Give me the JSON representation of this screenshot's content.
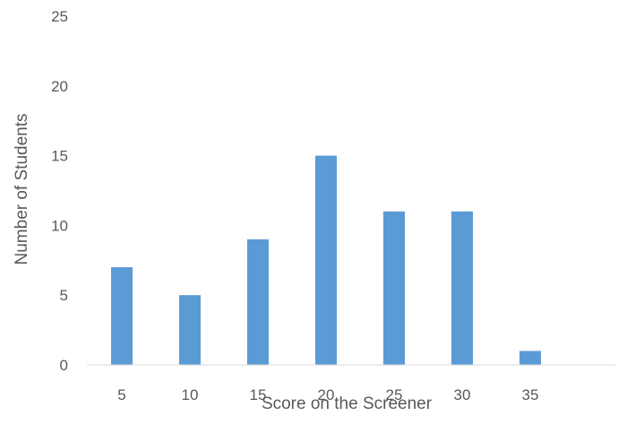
{
  "chart_data": {
    "type": "bar",
    "categories": [
      "5",
      "10",
      "15",
      "20",
      "25",
      "30",
      "35"
    ],
    "values": [
      7,
      5,
      9,
      15,
      11,
      11,
      1
    ],
    "xlabel": "Score on the Screener",
    "ylabel": "Number of Students",
    "ylim": [
      0,
      25
    ],
    "yticks": [
      "0",
      "5",
      "10",
      "15",
      "20",
      "25"
    ],
    "grid": false,
    "bar_color": "#5b9bd5",
    "axis_color": "#d9d9d9"
  }
}
